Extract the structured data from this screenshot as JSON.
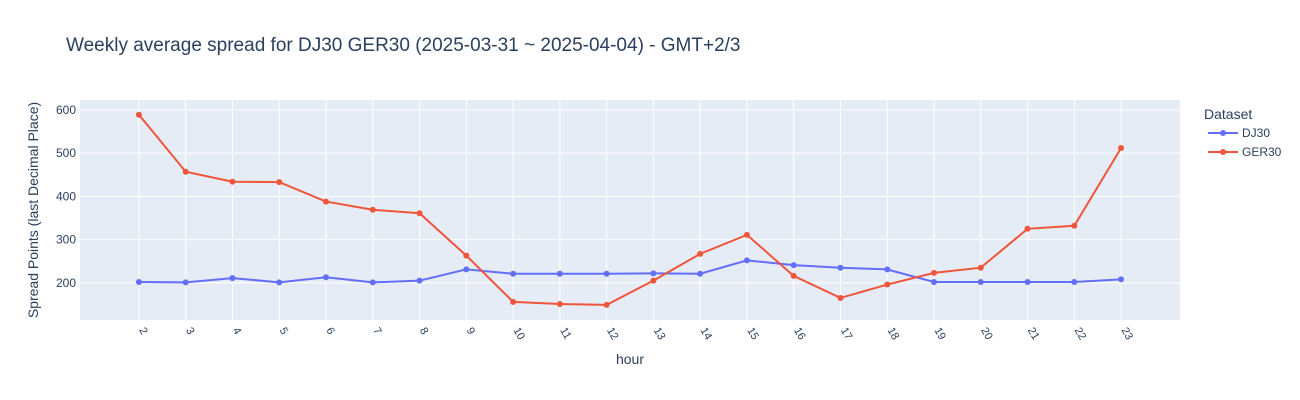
{
  "chart_data": {
    "type": "line",
    "title": "Weekly average spread for  DJ30 GER30 (2025-03-31 ~ 2025-04-04) - GMT+2/3",
    "x_label": "hour",
    "y_label": "Spread Points (last Decimal Place)",
    "legend_title": "Dataset",
    "legend_position": "right",
    "x": [
      2,
      3,
      4,
      5,
      6,
      7,
      8,
      9,
      10,
      11,
      12,
      13,
      14,
      15,
      16,
      17,
      18,
      19,
      20,
      21,
      22,
      23
    ],
    "xlim": [
      0.74,
      24.26
    ],
    "xticks": [
      2,
      3,
      4,
      5,
      6,
      7,
      8,
      9,
      10,
      11,
      12,
      13,
      14,
      15,
      16,
      17,
      18,
      19,
      20,
      21,
      22,
      23
    ],
    "ylim": [
      114,
      623
    ],
    "yticks": [
      200,
      300,
      400,
      500,
      600
    ],
    "grid": true,
    "series": [
      {
        "name": "DJ30",
        "color": "#636efa",
        "values": [
          202,
          201,
          211,
          201,
          213,
          201,
          205,
          231,
          221,
          221,
          221,
          222,
          221,
          252,
          241,
          235,
          231,
          202,
          202,
          202,
          202,
          208
        ]
      },
      {
        "name": "GER30",
        "color": "#ef553b",
        "values": [
          589,
          457,
          434,
          433,
          388,
          369,
          361,
          263,
          156,
          151,
          149,
          205,
          267,
          311,
          216,
          165,
          196,
          223,
          235,
          325,
          332,
          512
        ]
      }
    ]
  }
}
